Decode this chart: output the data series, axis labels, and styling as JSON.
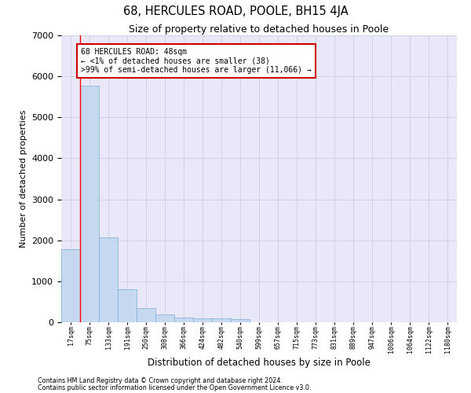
{
  "title": "68, HERCULES ROAD, POOLE, BH15 4JA",
  "subtitle": "Size of property relative to detached houses in Poole",
  "xlabel": "Distribution of detached houses by size in Poole",
  "ylabel": "Number of detached properties",
  "bar_color": "#c5d8f0",
  "bar_edge_color": "#7bafd4",
  "bin_labels": [
    "17sqm",
    "75sqm",
    "133sqm",
    "191sqm",
    "250sqm",
    "308sqm",
    "366sqm",
    "424sqm",
    "482sqm",
    "540sqm",
    "599sqm",
    "657sqm",
    "715sqm",
    "773sqm",
    "831sqm",
    "889sqm",
    "947sqm",
    "1006sqm",
    "1064sqm",
    "1122sqm",
    "1180sqm"
  ],
  "bar_values": [
    1780,
    5780,
    2080,
    800,
    340,
    190,
    115,
    100,
    95,
    80,
    0,
    0,
    0,
    0,
    0,
    0,
    0,
    0,
    0,
    0,
    0
  ],
  "ylim": [
    0,
    7000
  ],
  "annotation_text": "68 HERCULES ROAD: 48sqm\n← <1% of detached houses are smaller (38)\n>99% of semi-detached houses are larger (11,066) →",
  "annotation_box_color": "#ffffff",
  "annotation_box_edge_color": "#cc0000",
  "grid_color": "#d0d0e8",
  "background_color": "#e8e8f8",
  "footnote1": "Contains HM Land Registry data © Crown copyright and database right 2024.",
  "footnote2": "Contains public sector information licensed under the Open Government Licence v3.0."
}
